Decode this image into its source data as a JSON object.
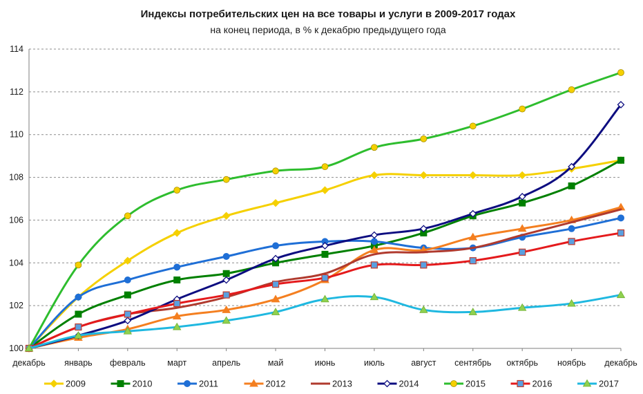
{
  "chart_data": {
    "type": "line",
    "title": "Индексы потребительских цен на все товары и услуги в 2009-2017 годах",
    "subtitle": "на конец периода, в % к декабрю предыдущего года",
    "xlabel": "",
    "ylabel": "",
    "categories": [
      "декабрь",
      "январь",
      "февраль",
      "март",
      "апрель",
      "май",
      "июнь",
      "июль",
      "август",
      "сентябрь",
      "октябрь",
      "ноябрь",
      "декабрь"
    ],
    "ylim": [
      100,
      114
    ],
    "yticks": [
      "100",
      "102",
      "104",
      "106",
      "108",
      "110",
      "112",
      "114"
    ],
    "grid": true,
    "legend_position": "bottom",
    "series": [
      {
        "name": "2009",
        "color": "#f5d000",
        "marker": "diamond",
        "values": [
          100,
          102.4,
          104.1,
          105.4,
          106.2,
          106.8,
          107.4,
          108.1,
          108.1,
          108.1,
          108.1,
          108.4,
          108.8
        ]
      },
      {
        "name": "2010",
        "color": "#008000",
        "marker": "square",
        "values": [
          100,
          101.6,
          102.5,
          103.2,
          103.5,
          104.0,
          104.4,
          104.8,
          105.4,
          106.2,
          106.8,
          107.6,
          108.8
        ]
      },
      {
        "name": "2011",
        "color": "#1f6fd6",
        "marker": "circle",
        "values": [
          100,
          102.4,
          103.2,
          103.8,
          104.3,
          104.8,
          105.0,
          105.0,
          104.7,
          104.7,
          105.2,
          105.6,
          106.1
        ]
      },
      {
        "name": "2012",
        "color": "#f47f20",
        "marker": "triangle",
        "values": [
          100,
          100.5,
          100.9,
          101.5,
          101.8,
          102.3,
          103.2,
          104.6,
          104.6,
          105.2,
          105.6,
          106.0,
          106.6
        ]
      },
      {
        "name": "2013",
        "color": "#b03a2e",
        "marker": "none",
        "values": [
          100,
          101.0,
          101.6,
          101.9,
          102.4,
          103.1,
          103.5,
          104.4,
          104.5,
          104.7,
          105.3,
          105.9,
          106.5
        ]
      },
      {
        "name": "2014",
        "color": "#0d0d80",
        "marker": "diamond-open",
        "values": [
          100,
          100.6,
          101.3,
          102.3,
          103.2,
          104.2,
          104.8,
          105.3,
          105.6,
          106.3,
          107.1,
          108.5,
          111.4
        ]
      },
      {
        "name": "2015",
        "color": "#2ebd2e",
        "marker": "circle-yellow",
        "values": [
          100,
          103.9,
          106.2,
          107.4,
          107.9,
          108.3,
          108.5,
          109.4,
          109.8,
          110.4,
          111.2,
          112.1,
          112.9
        ]
      },
      {
        "name": "2016",
        "color": "#e41a1c",
        "marker": "square-blue",
        "values": [
          100,
          101.0,
          101.6,
          102.1,
          102.5,
          103.0,
          103.3,
          103.9,
          103.9,
          104.1,
          104.5,
          105.0,
          105.4
        ]
      },
      {
        "name": "2017",
        "color": "#1fb8e0",
        "marker": "triangle-green",
        "values": [
          100,
          100.6,
          100.8,
          101.0,
          101.3,
          101.7,
          102.3,
          102.4,
          101.8,
          101.7,
          101.9,
          102.1,
          102.5
        ]
      }
    ]
  }
}
